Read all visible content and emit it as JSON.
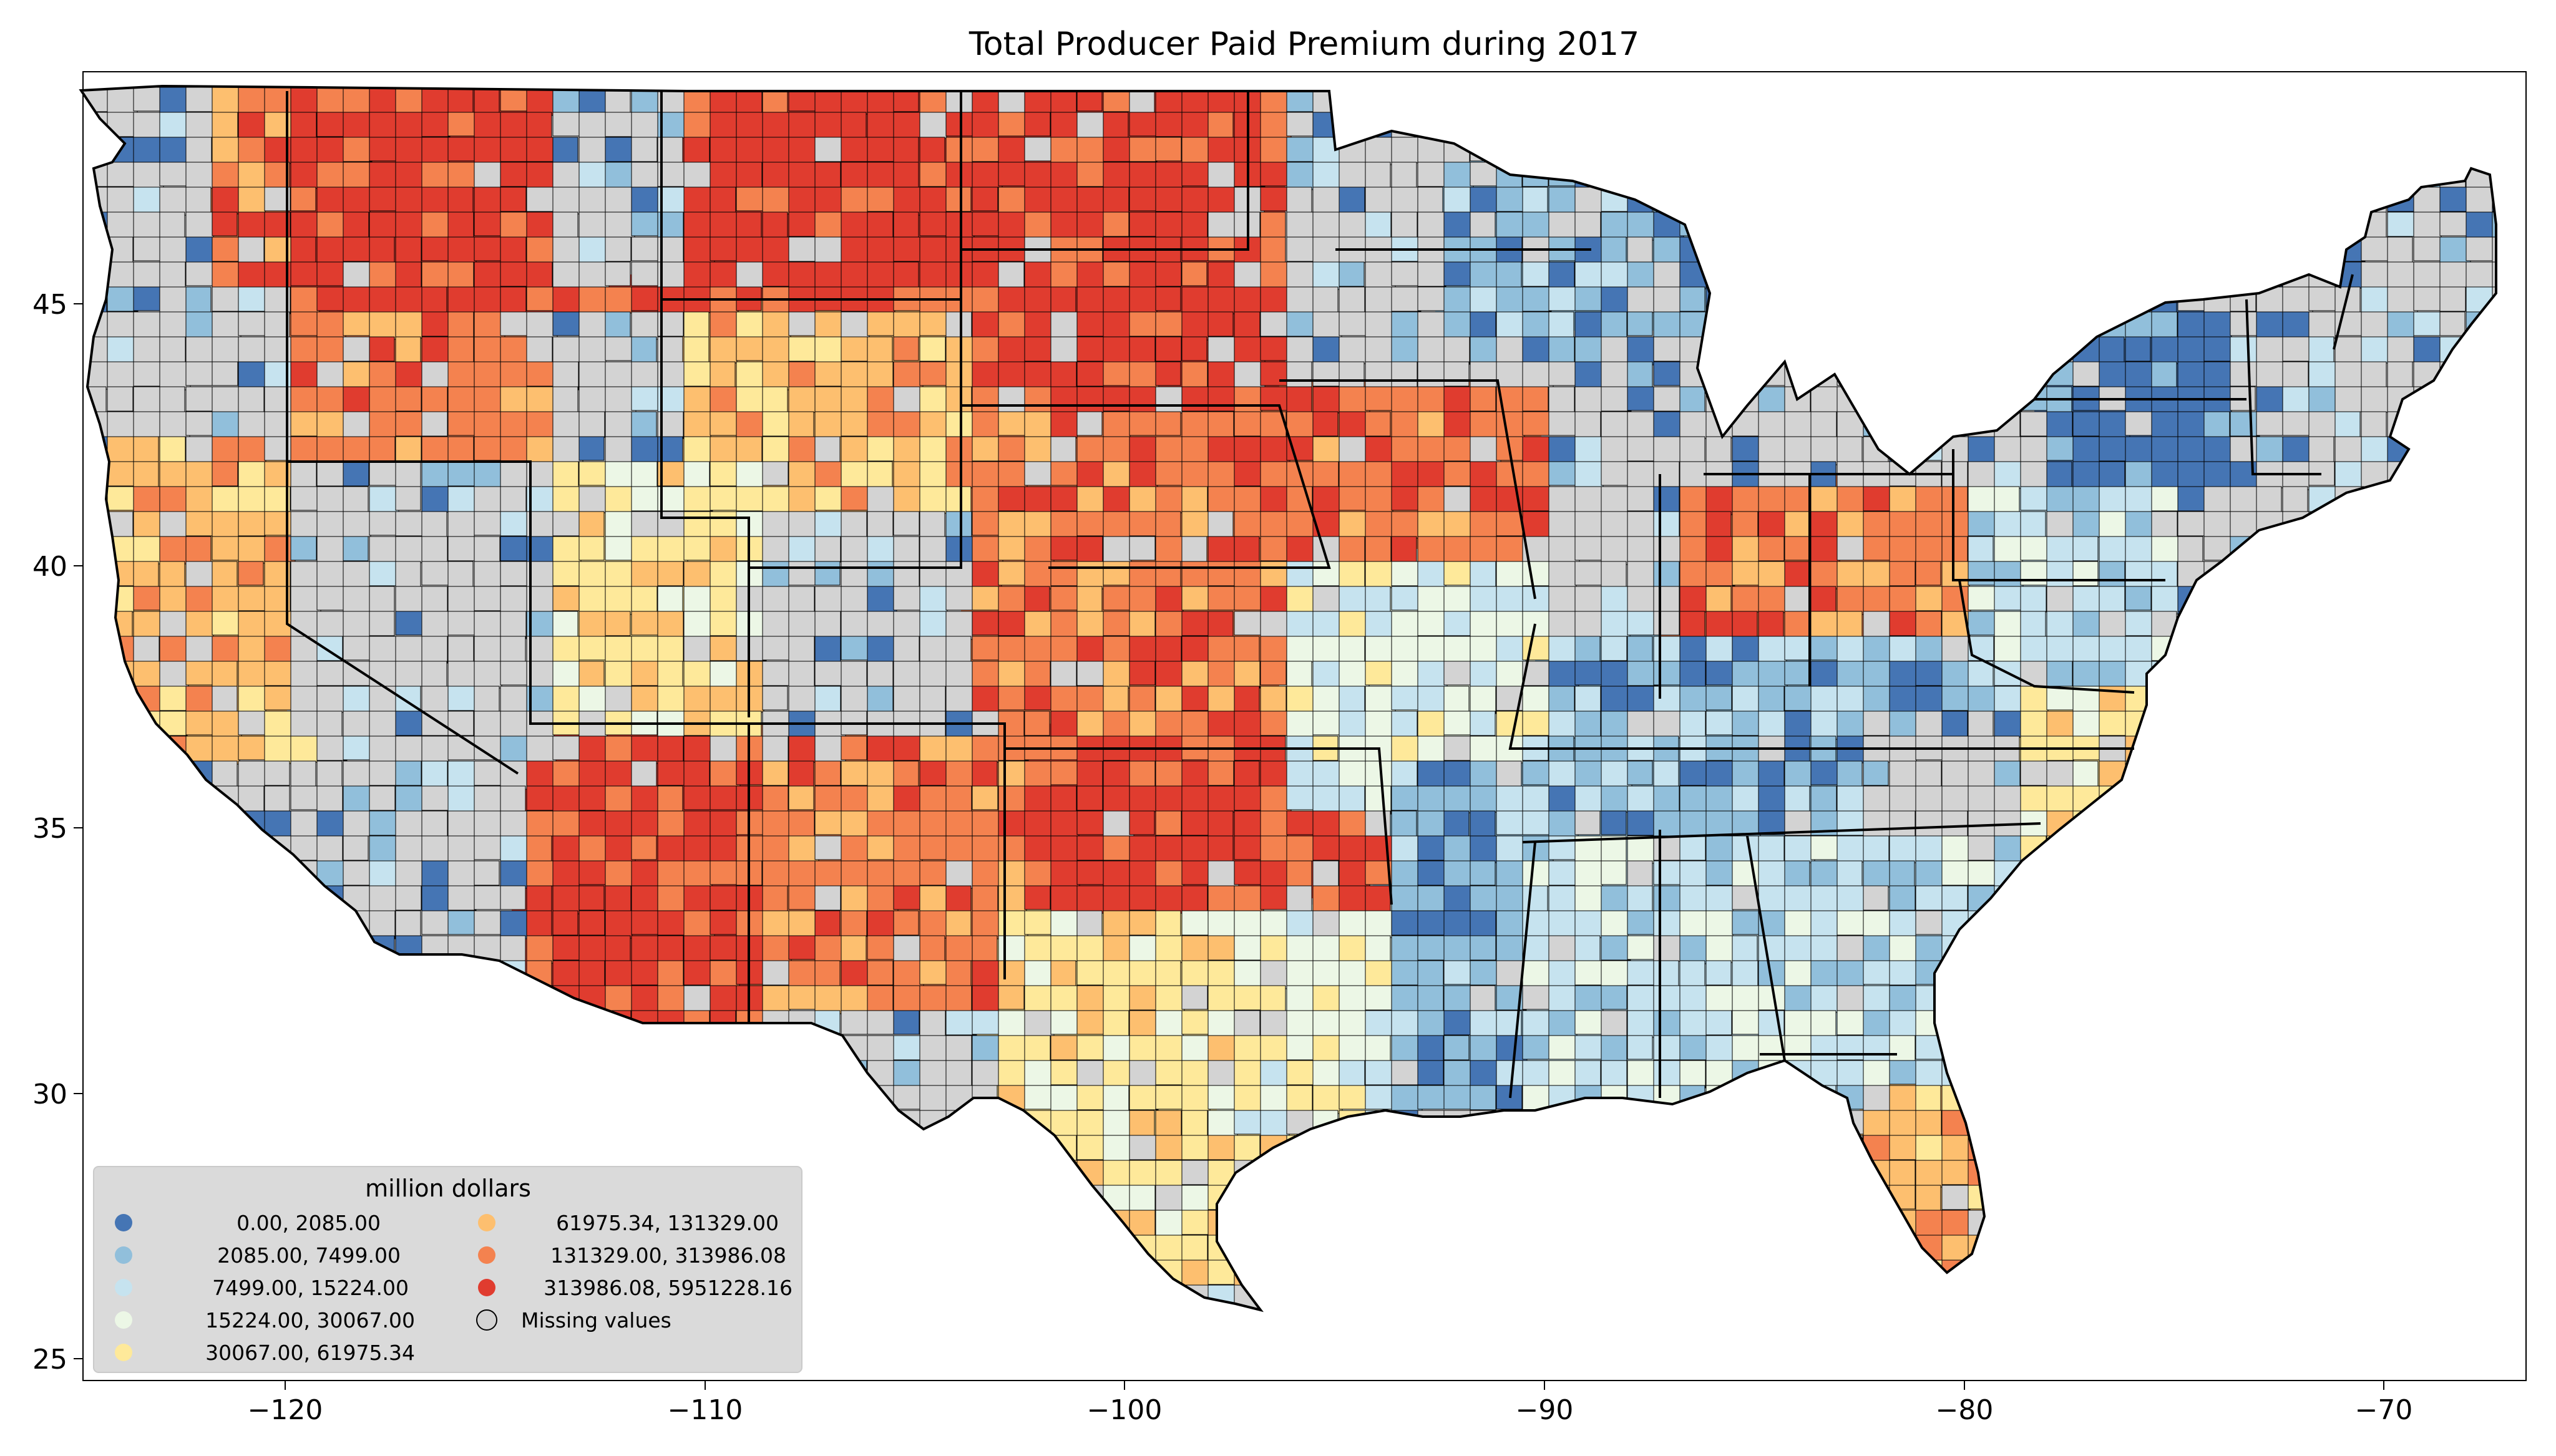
{
  "title": "Total Producer Paid Premium during 2017",
  "axes": {
    "x_ticks": [
      "−120",
      "−110",
      "−100",
      "−90",
      "−80",
      "−70"
    ],
    "y_ticks": [
      "45",
      "40",
      "35",
      "30",
      "25"
    ],
    "xlim": [
      -124.8,
      -66.6
    ],
    "ylim": [
      24.5,
      49.5
    ]
  },
  "legend": {
    "title": "million dollars",
    "placement": "bottom-left",
    "bins": [
      {
        "label": "0.00,    2085.00",
        "color": "#4575b4"
      },
      {
        "label": "2085.00,    7499.00",
        "color": "#91bfdb"
      },
      {
        "label": "7499.00,   15224.00",
        "color": "#c6e3ef"
      },
      {
        "label": "15224.00,   30067.00",
        "color": "#ecf7e6"
      },
      {
        "label": "30067.00,   61975.34",
        "color": "#fee99a"
      },
      {
        "label": "61975.34,  131329.00",
        "color": "#fdbf6f"
      },
      {
        "label": "131329.00,  313986.08",
        "color": "#f4824f"
      },
      {
        "label": "313986.08, 5951228.16",
        "color": "#e03c2f"
      },
      {
        "label": "Missing values",
        "color": "#d3d3d3"
      }
    ]
  },
  "colors": {
    "missing": "#d3d3d3",
    "county_border": "#000000",
    "legend_background": "#d9d9d9"
  }
}
